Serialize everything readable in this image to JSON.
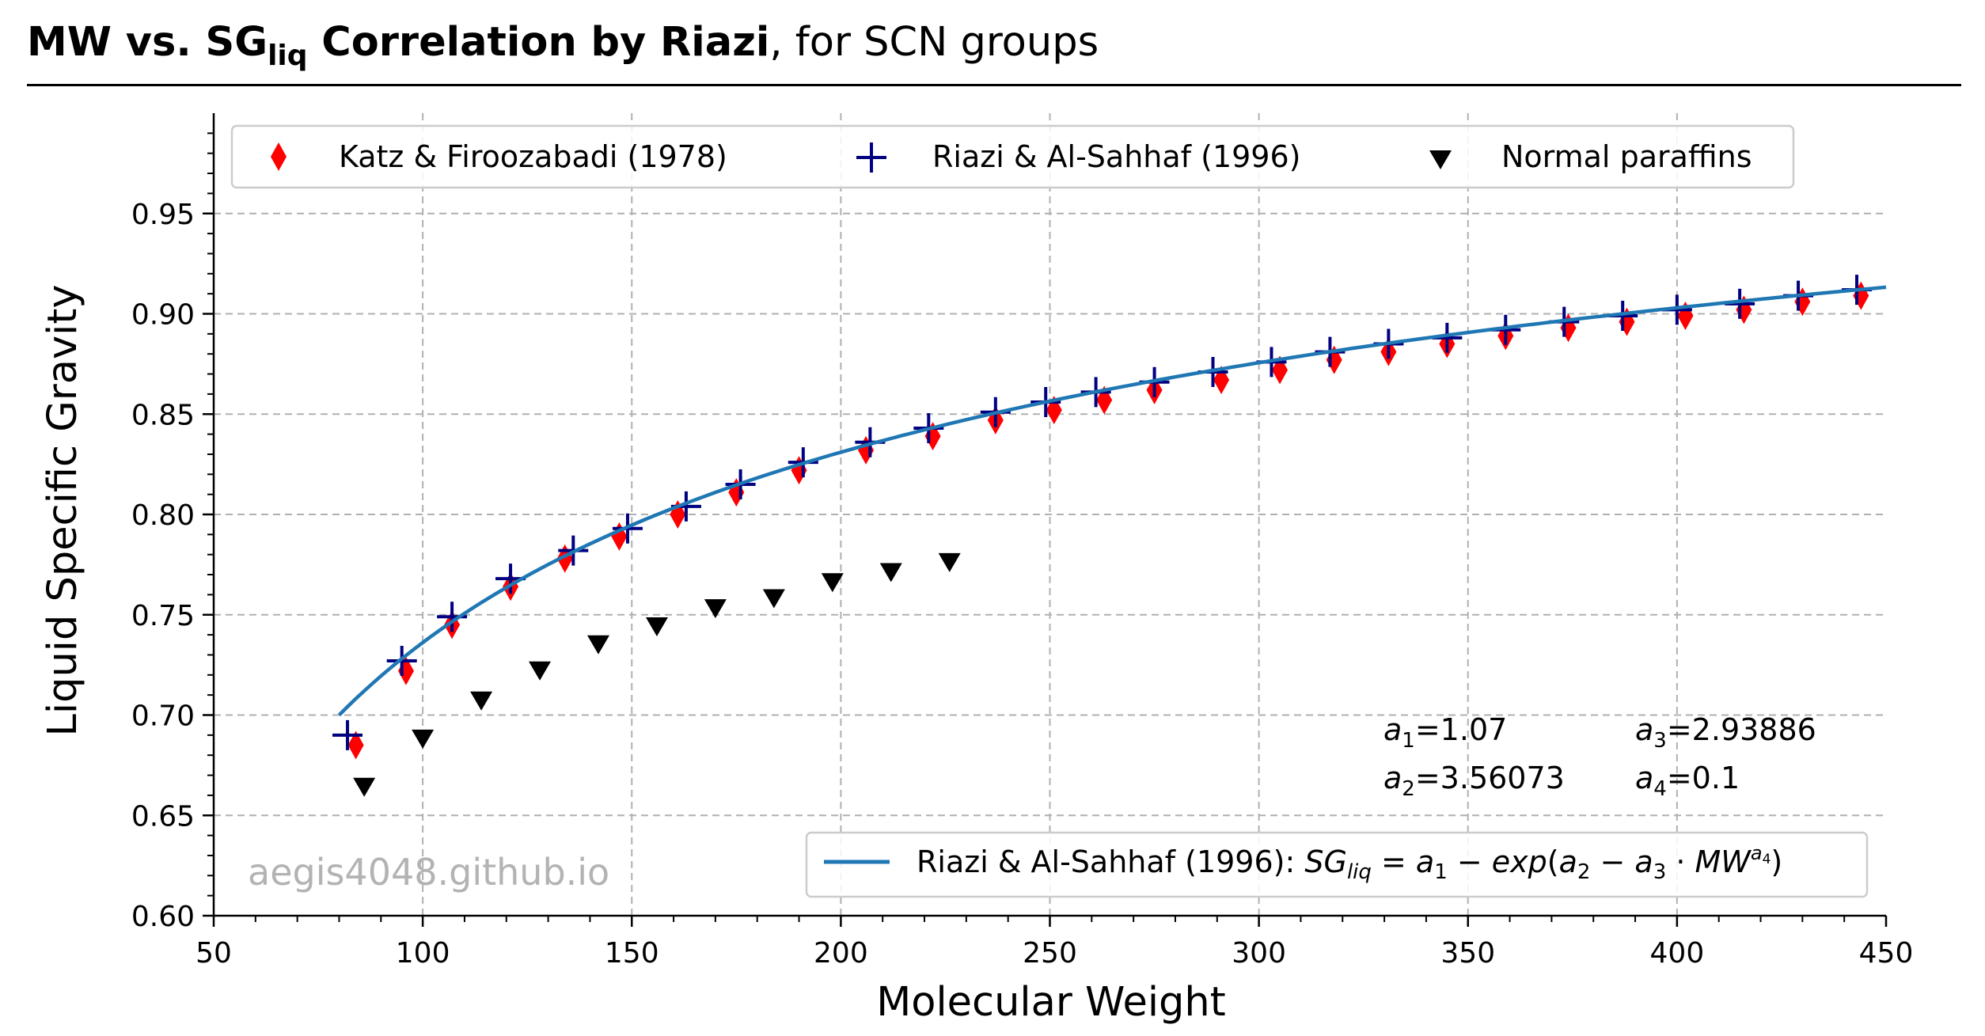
{
  "title": {
    "bold_part_1": "MW vs. ",
    "bold_sg": "SG",
    "bold_sub": "liq",
    "bold_part_2": " Correlation by Riazi",
    "normal_part": ", for SCN groups"
  },
  "watermark": "aegis4048.github.io",
  "coefficients": {
    "a1": "=1.07",
    "a2": "=3.56073",
    "a3": "=2.93886",
    "a4": "=0.1"
  },
  "legend_line_equation": "Riazi & Al-Sahhaf (1996): SG_liq = a1 - exp(a2 - a3 · MW^a4)",
  "colors": {
    "katz": "#ff0000",
    "riazi_points": "#000080",
    "paraffins": "#000000",
    "curve": "#1f77b4",
    "grid": "#b0b0b0"
  },
  "chart_data": {
    "type": "scatter",
    "xlabel": "Molecular Weight",
    "ylabel": "Liquid Specific Gravity",
    "xlim": [
      50,
      450
    ],
    "ylim": [
      0.6,
      1.0
    ],
    "x_ticks": [
      "50",
      "100",
      "150",
      "200",
      "250",
      "300",
      "350",
      "400",
      "450"
    ],
    "y_ticks": [
      "0.60",
      "0.65",
      "0.70",
      "0.75",
      "0.80",
      "0.85",
      "0.90",
      "0.95"
    ],
    "grid": true,
    "legend_top": "upper, 3 columns",
    "legend_bottom": "lower-right",
    "series": [
      {
        "name": "Katz & Firoozabadi (1978)",
        "marker": "thin_diamond",
        "x": [
          84,
          96,
          107,
          121,
          134,
          147,
          161,
          175,
          190,
          206,
          222,
          237,
          251,
          263,
          275,
          291,
          305,
          318,
          331,
          345,
          359,
          374,
          388,
          402,
          416,
          430,
          444
        ],
        "y": [
          0.685,
          0.722,
          0.745,
          0.764,
          0.778,
          0.789,
          0.8,
          0.811,
          0.822,
          0.832,
          0.839,
          0.847,
          0.852,
          0.857,
          0.862,
          0.867,
          0.872,
          0.877,
          0.881,
          0.885,
          0.889,
          0.893,
          0.896,
          0.899,
          0.902,
          0.906,
          0.909
        ]
      },
      {
        "name": "Riazi & Al-Sahhaf (1996)",
        "marker": "plus",
        "x": [
          82,
          95,
          107,
          121,
          136,
          149,
          163,
          176,
          191,
          207,
          221,
          237,
          249,
          261,
          275,
          289,
          303,
          317,
          331,
          345,
          359,
          373,
          387,
          400,
          415,
          429,
          443
        ],
        "y": [
          0.69,
          0.727,
          0.749,
          0.768,
          0.782,
          0.793,
          0.804,
          0.815,
          0.826,
          0.836,
          0.843,
          0.851,
          0.856,
          0.861,
          0.866,
          0.871,
          0.876,
          0.881,
          0.885,
          0.888,
          0.892,
          0.896,
          0.899,
          0.902,
          0.905,
          0.909,
          0.912
        ]
      },
      {
        "name": "Normal paraffins",
        "marker": "triangle_down",
        "x": [
          86,
          100,
          114,
          128,
          142,
          156,
          170,
          184,
          198,
          212,
          226
        ],
        "y": [
          0.664,
          0.688,
          0.707,
          0.722,
          0.735,
          0.744,
          0.753,
          0.758,
          0.766,
          0.771,
          0.776
        ]
      }
    ],
    "curve": {
      "name": "Riazi & Al-Sahhaf (1996)",
      "x_range": [
        80,
        450
      ],
      "a1": 1.07,
      "a2": 3.56073,
      "a3": 2.93886,
      "a4": 0.1
    }
  }
}
